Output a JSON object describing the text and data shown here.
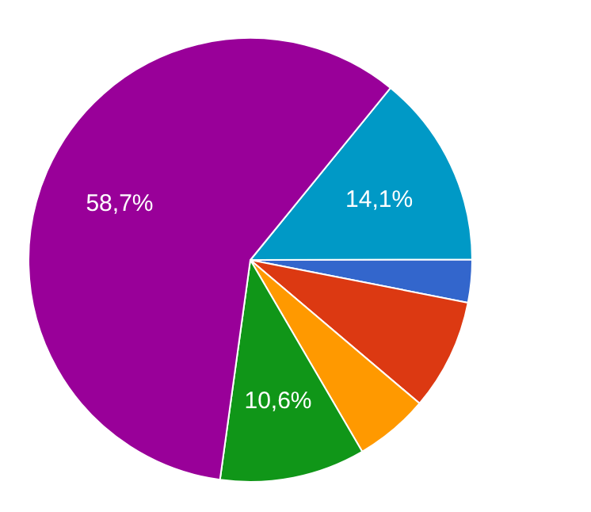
{
  "chart_data": {
    "type": "pie",
    "categories": [
      null,
      null,
      null,
      null,
      null,
      null
    ],
    "values": [
      14.1,
      3.1,
      8.1,
      5.4,
      10.6,
      58.7
    ],
    "colors": [
      "#0099c6",
      "#3366cc",
      "#dc3912",
      "#ff9900",
      "#109618",
      "#990099"
    ],
    "value_labels": [
      "14,1%",
      null,
      null,
      null,
      "10,6%",
      "58,7%"
    ],
    "legend": false
  }
}
